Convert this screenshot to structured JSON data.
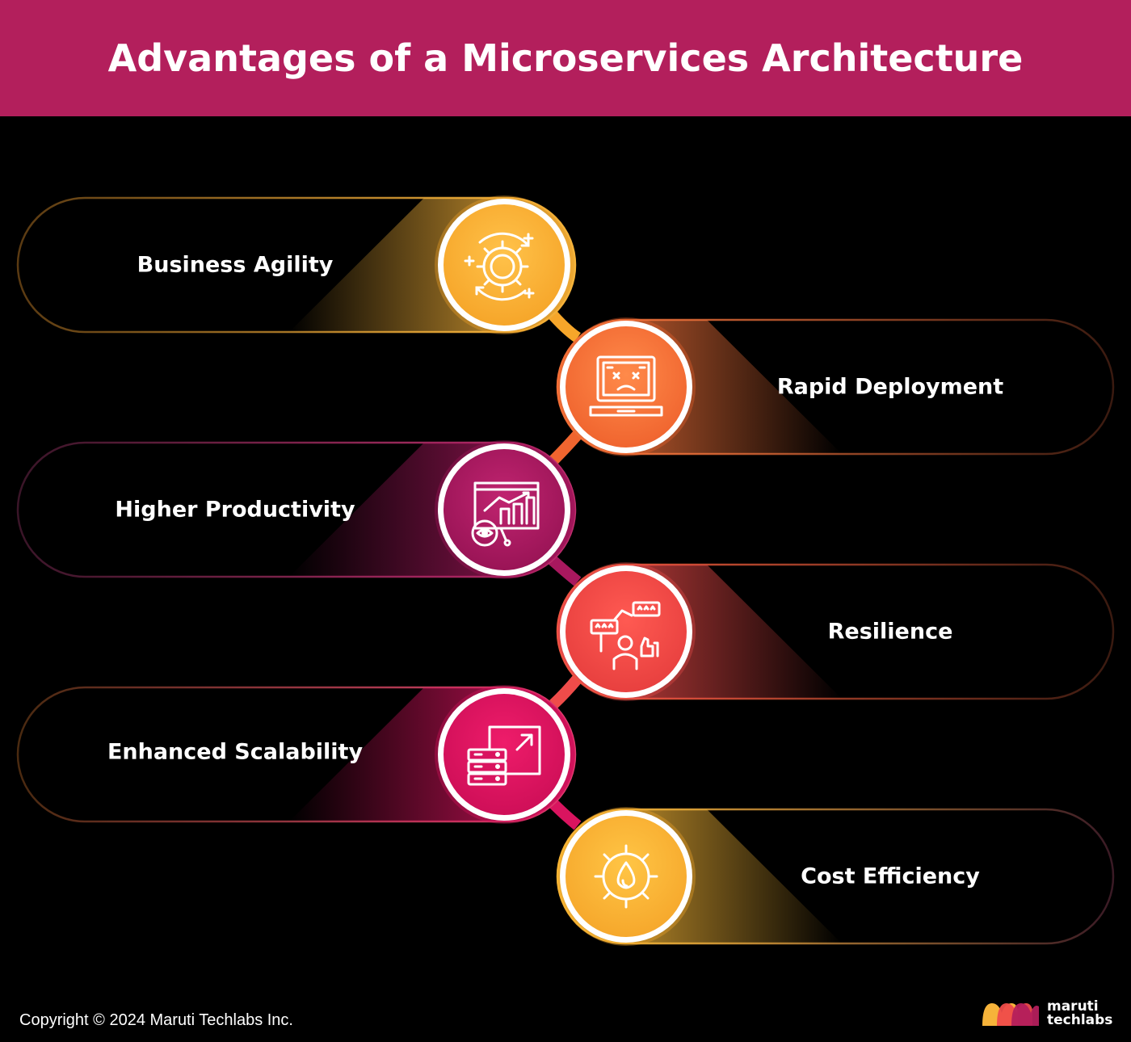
{
  "title": "Advantages of a Microservices Architecture",
  "items": [
    {
      "label": "Business Agility",
      "icon": "gear-cycle-icon",
      "color": "#f6b33a"
    },
    {
      "label": "Rapid Deployment",
      "icon": "laptop-error-icon",
      "color": "#f4743b"
    },
    {
      "label": "Higher Productivity",
      "icon": "presentation-chart-icon",
      "color": "#a8185e"
    },
    {
      "label": "Resilience",
      "icon": "people-feedback-icon",
      "color": "#ef4c4a"
    },
    {
      "label": "Enhanced Scalability",
      "icon": "server-scale-icon",
      "color": "#d9145f"
    },
    {
      "label": "Cost Efficiency",
      "icon": "gear-drop-icon",
      "color": "#f7b838"
    }
  ],
  "footer": {
    "copyright": "Copyright © 2024 Maruti Techlabs Inc."
  },
  "brand": {
    "line1": "maruti",
    "line2": "techlabs",
    "colors": [
      "#f6b33a",
      "#ef4c4a",
      "#b31f5c"
    ]
  }
}
